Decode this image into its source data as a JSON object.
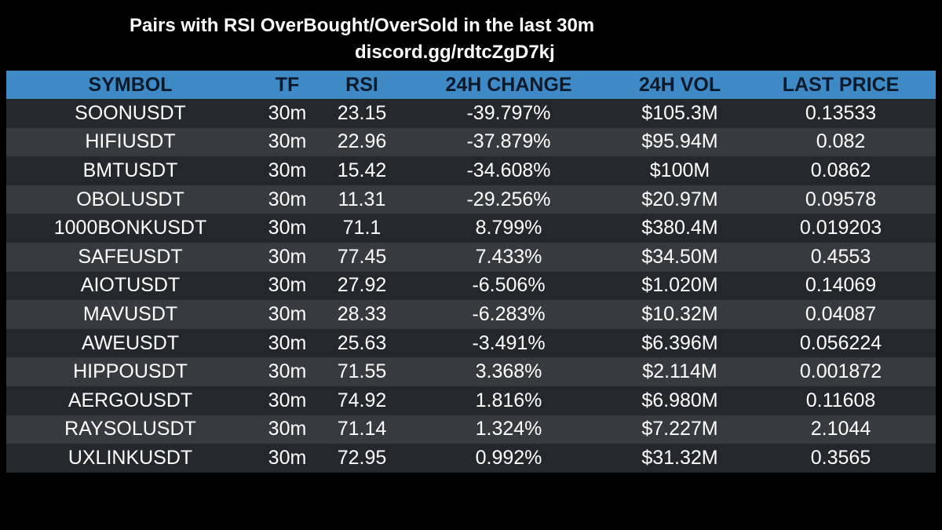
{
  "title": "Pairs with RSI OverBought/OverSold in the last 30m",
  "subtitle": "discord.gg/rdtcZgD7kj",
  "colors": {
    "background": "#000000",
    "header_bg": "#3d8ac7",
    "row_dark": "#23282d",
    "row_light": "#363b40",
    "text": "#ffffff"
  },
  "table": {
    "headers": [
      "SYMBOL",
      "TF",
      "RSI",
      "24H CHANGE",
      "24H VOL",
      "LAST PRICE"
    ],
    "rows": [
      [
        "SOONUSDT",
        "30m",
        "23.15",
        "-39.797%",
        "$105.3M",
        "0.13533"
      ],
      [
        "HIFIUSDT",
        "30m",
        "22.96",
        "-37.879%",
        "$95.94M",
        "0.082"
      ],
      [
        "BMTUSDT",
        "30m",
        "15.42",
        "-34.608%",
        "$100M",
        "0.0862"
      ],
      [
        "OBOLUSDT",
        "30m",
        "11.31",
        "-29.256%",
        "$20.97M",
        "0.09578"
      ],
      [
        "1000BONKUSDT",
        "30m",
        "71.1",
        "8.799%",
        "$380.4M",
        "0.019203"
      ],
      [
        "SAFEUSDT",
        "30m",
        "77.45",
        "7.433%",
        "$34.50M",
        "0.4553"
      ],
      [
        "AIOTUSDT",
        "30m",
        "27.92",
        "-6.506%",
        "$1.020M",
        "0.14069"
      ],
      [
        "MAVUSDT",
        "30m",
        "28.33",
        "-6.283%",
        "$10.32M",
        "0.04087"
      ],
      [
        "AWEUSDT",
        "30m",
        "25.63",
        "-3.491%",
        "$6.396M",
        "0.056224"
      ],
      [
        "HIPPOUSDT",
        "30m",
        "71.55",
        "3.368%",
        "$2.114M",
        "0.001872"
      ],
      [
        "AERGOUSDT",
        "30m",
        "74.92",
        "1.816%",
        "$6.980M",
        "0.11608"
      ],
      [
        "RAYSOLUSDT",
        "30m",
        "71.14",
        "1.324%",
        "$7.227M",
        "2.1044"
      ],
      [
        "UXLINKUSDT",
        "30m",
        "72.95",
        "0.992%",
        "$31.32M",
        "0.3565"
      ]
    ]
  }
}
